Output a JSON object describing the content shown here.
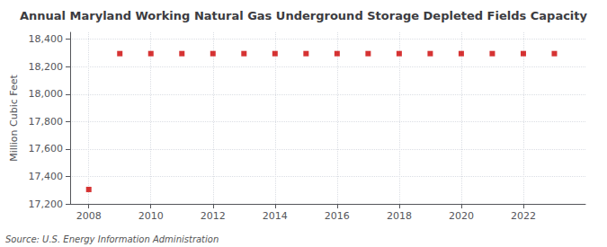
{
  "chart_data": {
    "type": "scatter",
    "title": "Annual Maryland Working Natural Gas Underground Storage Depleted Fields Capacity",
    "ylabel": "Million Cubic Feet",
    "annotations": [
      "Source: U.S. Energy Information Administration"
    ],
    "x": [
      2008,
      2009,
      2010,
      2011,
      2012,
      2013,
      2014,
      2015,
      2016,
      2017,
      2018,
      2019,
      2020,
      2021,
      2022,
      2023
    ],
    "values": [
      17305,
      18295,
      18295,
      18295,
      18295,
      18295,
      18295,
      18295,
      18295,
      18295,
      18295,
      18295,
      18295,
      18295,
      18295,
      18295
    ],
    "color": "#cc0000",
    "marker": "square",
    "xlim": [
      2007.4,
      2024.0
    ],
    "xticks": [
      2008,
      2010,
      2012,
      2014,
      2016,
      2018,
      2020,
      2022
    ],
    "ylim": [
      17200,
      18450
    ],
    "yticks": [
      {
        "value": 17200,
        "label": "17,200"
      },
      {
        "value": 17400,
        "label": "17,400"
      },
      {
        "value": 17600,
        "label": "17,600"
      },
      {
        "value": 17800,
        "label": "17,800"
      },
      {
        "value": 18000,
        "label": "18,000"
      },
      {
        "value": 18200,
        "label": "18,200"
      },
      {
        "value": 18400,
        "label": "18,400"
      }
    ],
    "grid": true
  }
}
